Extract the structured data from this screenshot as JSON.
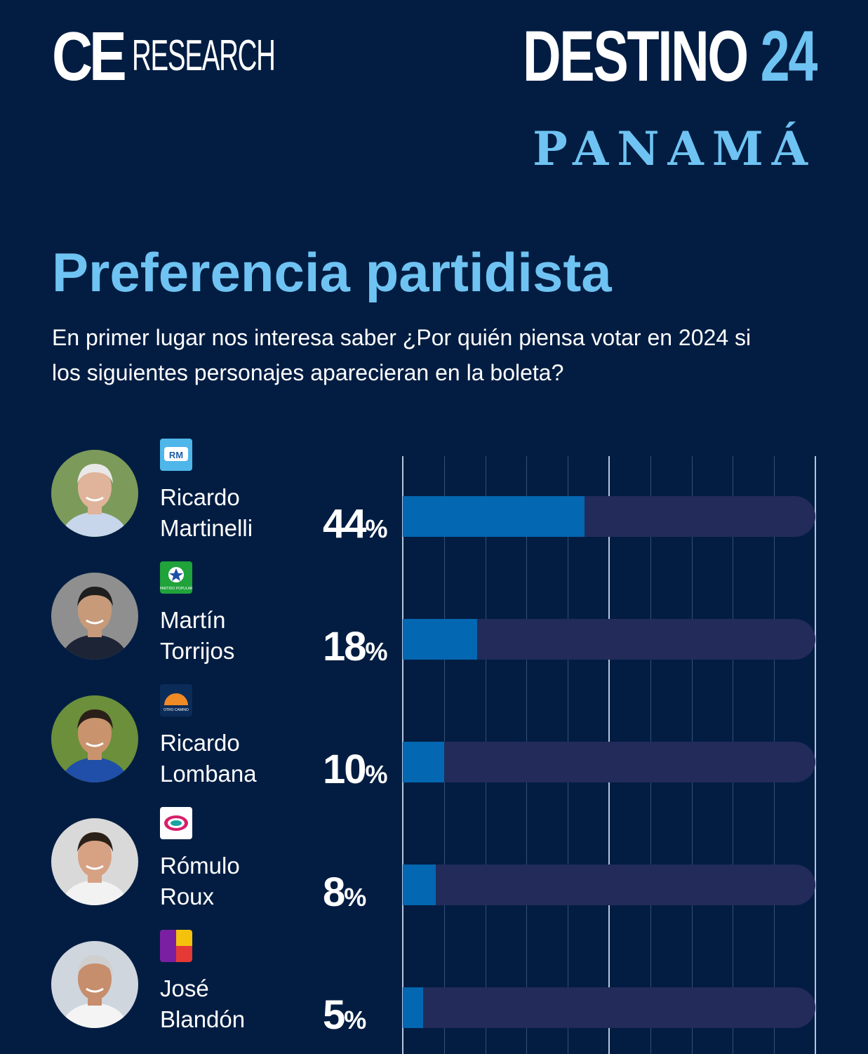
{
  "header": {
    "brand_ce": "CE",
    "brand_research": "RESEARCH",
    "program": "DESTINO",
    "program_number": "24",
    "country": "PANAMÁ"
  },
  "title": "Preferencia partidista",
  "subtitle": "En primer lugar nos interesa saber ¿Por quién piensa votar en 2024 si los siguientes personajes aparecieran en la boleta?",
  "colors": {
    "background": "#031d42",
    "accent": "#6fc3f2",
    "bar_fill": "#0467b1",
    "bar_track": "#222b5a"
  },
  "chart_data": {
    "type": "bar",
    "orientation": "horizontal",
    "title": "Preferencia partidista",
    "categories": [
      "Ricardo Martinelli",
      "Martín Torrijos",
      "Ricardo Lombana",
      "Rómulo Roux",
      "José Blandón"
    ],
    "values": [
      44,
      18,
      10,
      8,
      5
    ],
    "value_labels": [
      "44",
      "18",
      "10",
      "8",
      "5"
    ],
    "value_suffix": "%",
    "xlim": [
      0,
      100
    ],
    "grid": true
  },
  "candidates": [
    {
      "first": "Ricardo",
      "last": "Martinelli",
      "logo_icon": "realizando-metas-logo-icon",
      "avatar_icon": "martinelli-photo-icon"
    },
    {
      "first": "Martín",
      "last": "Torrijos",
      "logo_icon": "partido-popular-logo-icon",
      "avatar_icon": "torrijos-photo-icon"
    },
    {
      "first": "Ricardo",
      "last": "Lombana",
      "logo_icon": "otro-camino-logo-icon",
      "avatar_icon": "lombana-photo-icon"
    },
    {
      "first": "Rómulo",
      "last": "Roux",
      "logo_icon": "cambio-democratico-logo-icon",
      "avatar_icon": "roux-photo-icon"
    },
    {
      "first": "José",
      "last": "Blandón",
      "logo_icon": "purple-red-yellow-logo-icon",
      "avatar_icon": "blandon-photo-icon"
    }
  ],
  "logo_texts": {
    "rm": "RM",
    "pp": "PARTIDO POPULAR",
    "oc": "OTRO CAMINO"
  }
}
